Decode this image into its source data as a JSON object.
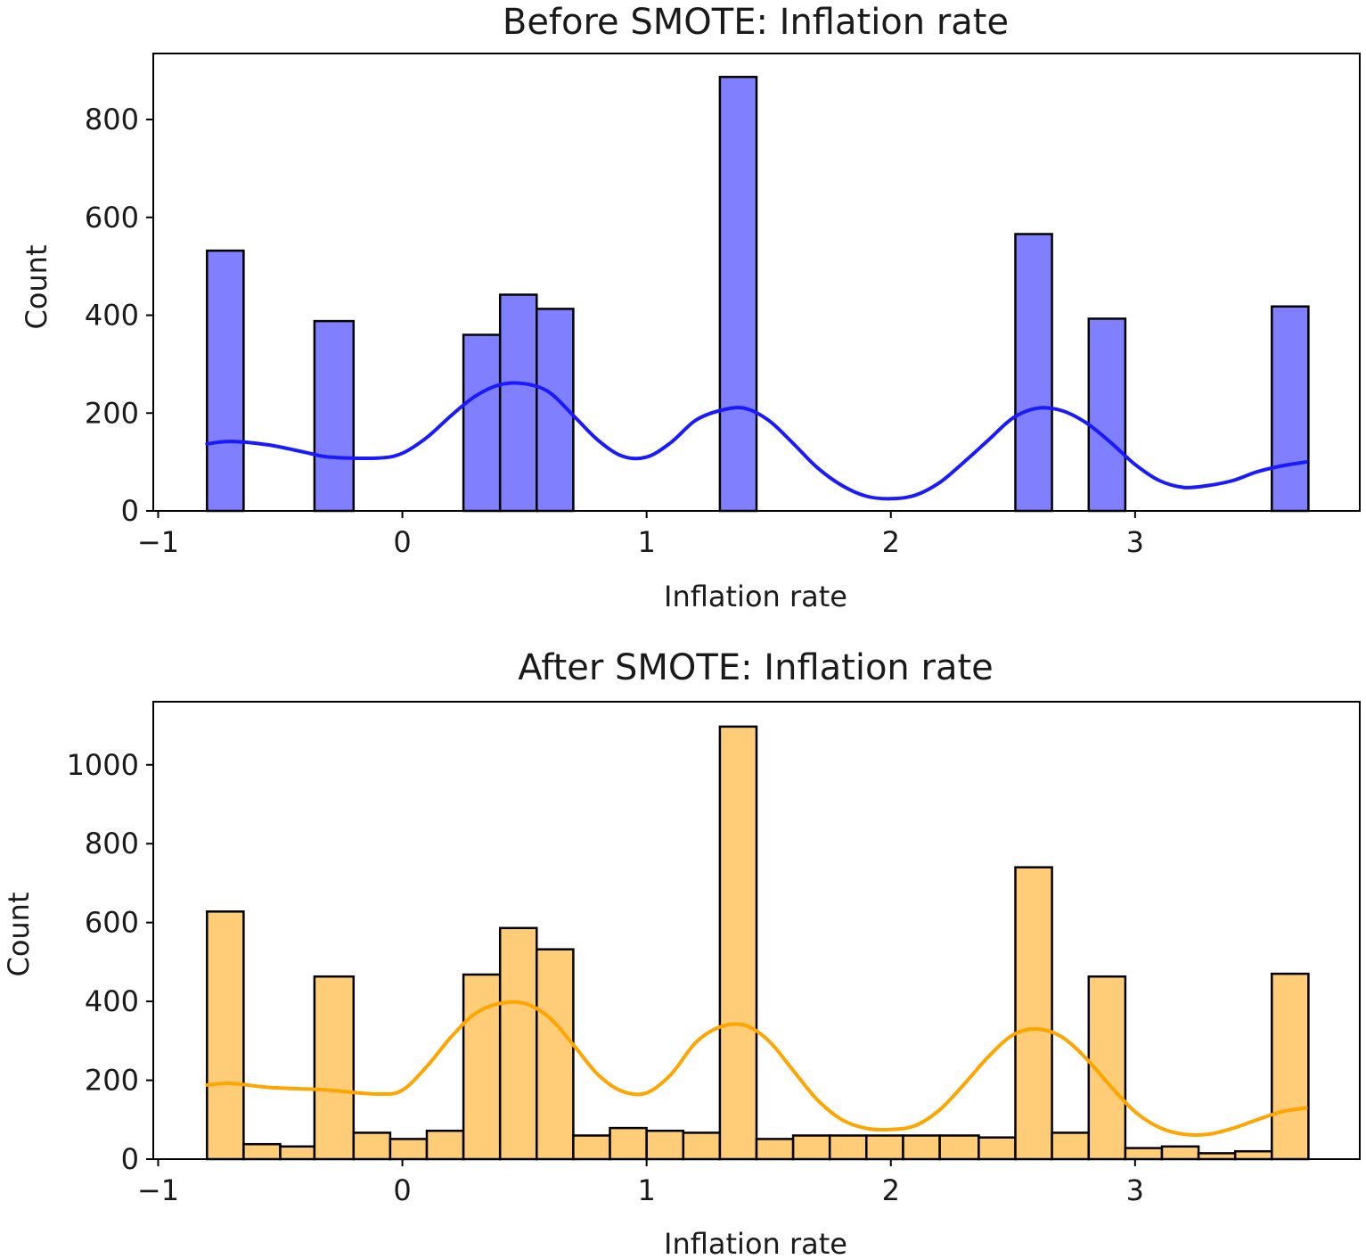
{
  "chart_data": [
    {
      "type": "histogram",
      "title": "Before SMOTE: Inflation rate",
      "xlabel": "Inflation rate",
      "ylabel": "Count",
      "xlim": [
        -1.02,
        3.92
      ],
      "ylim": [
        0,
        935
      ],
      "xticks": [
        -1,
        0,
        1,
        2,
        3
      ],
      "xtick_labels": [
        "−1",
        "0",
        "1",
        "2",
        "3"
      ],
      "yticks": [
        0,
        200,
        400,
        600,
        800
      ],
      "ytick_labels": [
        "0",
        "200",
        "400",
        "600",
        "800"
      ],
      "bar_color": "#8080ff",
      "kde_color": "#1a1aff",
      "bins": [
        {
          "x0": -0.8,
          "x1": -0.65,
          "count": 532
        },
        {
          "x0": -0.36,
          "x1": -0.2,
          "count": 388
        },
        {
          "x0": 0.25,
          "x1": 0.4,
          "count": 360
        },
        {
          "x0": 0.4,
          "x1": 0.55,
          "count": 442
        },
        {
          "x0": 0.55,
          "x1": 0.7,
          "count": 413
        },
        {
          "x0": 1.3,
          "x1": 1.45,
          "count": 887
        },
        {
          "x0": 2.51,
          "x1": 2.66,
          "count": 566
        },
        {
          "x0": 2.81,
          "x1": 2.96,
          "count": 393
        },
        {
          "x0": 3.56,
          "x1": 3.71,
          "count": 418
        }
      ],
      "kde": {
        "x": [
          -0.8,
          -0.7,
          -0.55,
          -0.4,
          -0.3,
          -0.1,
          0.0,
          0.1,
          0.2,
          0.3,
          0.4,
          0.5,
          0.6,
          0.7,
          0.8,
          0.9,
          1.0,
          1.1,
          1.2,
          1.3,
          1.4,
          1.5,
          1.6,
          1.7,
          1.8,
          1.9,
          2.0,
          2.1,
          2.2,
          2.3,
          2.4,
          2.5,
          2.6,
          2.7,
          2.8,
          2.9,
          3.0,
          3.1,
          3.2,
          3.3,
          3.4,
          3.5,
          3.6,
          3.7
        ],
        "y": [
          137,
          142,
          135,
          120,
          110,
          108,
          118,
          150,
          195,
          235,
          258,
          260,
          243,
          195,
          145,
          112,
          110,
          140,
          185,
          205,
          210,
          185,
          138,
          88,
          52,
          30,
          25,
          32,
          58,
          100,
          145,
          190,
          210,
          205,
          180,
          140,
          95,
          62,
          48,
          52,
          62,
          80,
          92,
          100
        ]
      }
    },
    {
      "type": "histogram",
      "title": "After SMOTE: Inflation rate",
      "xlabel": "Inflation rate",
      "ylabel": "Count",
      "xlim": [
        -1.02,
        3.92
      ],
      "ylim": [
        0,
        1160
      ],
      "xticks": [
        -1,
        0,
        1,
        2,
        3
      ],
      "xtick_labels": [
        "−1",
        "0",
        "1",
        "2",
        "3"
      ],
      "yticks": [
        0,
        200,
        400,
        600,
        800,
        1000
      ],
      "ytick_labels": [
        "0",
        "200",
        "400",
        "600",
        "800",
        "1000"
      ],
      "bar_color": "#ffcc77",
      "kde_color": "#ffa500",
      "bins": [
        {
          "x0": -0.8,
          "x1": -0.65,
          "count": 628
        },
        {
          "x0": -0.65,
          "x1": -0.5,
          "count": 38
        },
        {
          "x0": -0.5,
          "x1": -0.36,
          "count": 32
        },
        {
          "x0": -0.36,
          "x1": -0.2,
          "count": 463
        },
        {
          "x0": -0.2,
          "x1": -0.05,
          "count": 67
        },
        {
          "x0": -0.05,
          "x1": 0.1,
          "count": 51
        },
        {
          "x0": 0.1,
          "x1": 0.25,
          "count": 72
        },
        {
          "x0": 0.25,
          "x1": 0.4,
          "count": 468
        },
        {
          "x0": 0.4,
          "x1": 0.55,
          "count": 586
        },
        {
          "x0": 0.55,
          "x1": 0.7,
          "count": 532
        },
        {
          "x0": 0.7,
          "x1": 0.85,
          "count": 60
        },
        {
          "x0": 0.85,
          "x1": 1.0,
          "count": 79
        },
        {
          "x0": 1.0,
          "x1": 1.15,
          "count": 72
        },
        {
          "x0": 1.15,
          "x1": 1.3,
          "count": 67
        },
        {
          "x0": 1.3,
          "x1": 1.45,
          "count": 1097
        },
        {
          "x0": 1.45,
          "x1": 1.6,
          "count": 51
        },
        {
          "x0": 1.6,
          "x1": 1.75,
          "count": 60
        },
        {
          "x0": 1.75,
          "x1": 1.9,
          "count": 60
        },
        {
          "x0": 1.9,
          "x1": 2.05,
          "count": 60
        },
        {
          "x0": 2.05,
          "x1": 2.2,
          "count": 60
        },
        {
          "x0": 2.2,
          "x1": 2.36,
          "count": 60
        },
        {
          "x0": 2.36,
          "x1": 2.51,
          "count": 55
        },
        {
          "x0": 2.51,
          "x1": 2.66,
          "count": 740
        },
        {
          "x0": 2.66,
          "x1": 2.81,
          "count": 67
        },
        {
          "x0": 2.81,
          "x1": 2.96,
          "count": 463
        },
        {
          "x0": 2.96,
          "x1": 3.11,
          "count": 28
        },
        {
          "x0": 3.11,
          "x1": 3.26,
          "count": 32
        },
        {
          "x0": 3.26,
          "x1": 3.41,
          "count": 15
        },
        {
          "x0": 3.41,
          "x1": 3.56,
          "count": 20
        },
        {
          "x0": 3.56,
          "x1": 3.71,
          "count": 470
        }
      ],
      "kde": {
        "x": [
          -0.8,
          -0.7,
          -0.55,
          -0.4,
          -0.3,
          -0.1,
          0.0,
          0.1,
          0.2,
          0.3,
          0.4,
          0.5,
          0.6,
          0.7,
          0.8,
          0.9,
          1.0,
          1.1,
          1.2,
          1.3,
          1.4,
          1.5,
          1.6,
          1.7,
          1.8,
          1.9,
          2.0,
          2.1,
          2.2,
          2.3,
          2.4,
          2.5,
          2.6,
          2.7,
          2.8,
          2.9,
          3.0,
          3.1,
          3.2,
          3.3,
          3.4,
          3.5,
          3.6,
          3.7
        ],
        "y": [
          188,
          192,
          182,
          178,
          175,
          165,
          175,
          235,
          310,
          370,
          395,
          395,
          360,
          290,
          215,
          172,
          168,
          215,
          295,
          335,
          340,
          300,
          225,
          150,
          100,
          78,
          75,
          85,
          125,
          190,
          260,
          315,
          330,
          310,
          255,
          185,
          120,
          80,
          63,
          63,
          78,
          100,
          120,
          130
        ]
      }
    }
  ]
}
